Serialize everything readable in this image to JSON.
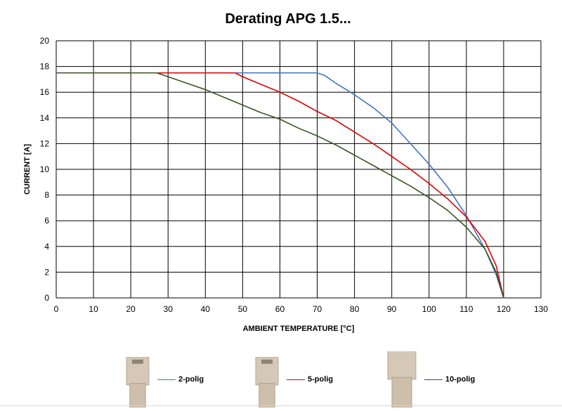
{
  "chart_data": {
    "type": "line",
    "title": "Derating APG 1.5...",
    "xlabel": "AMBIENT TEMPERATURE [°C]",
    "ylabel": "CURRENT [A]",
    "xlim": [
      0,
      130
    ],
    "ylim": [
      0,
      20
    ],
    "xticks": [
      0,
      10,
      20,
      30,
      40,
      50,
      60,
      70,
      80,
      90,
      100,
      110,
      120,
      130
    ],
    "yticks": [
      0,
      2,
      4,
      6,
      8,
      10,
      12,
      14,
      16,
      18,
      20
    ],
    "grid": true,
    "legend_placement": "bottom",
    "series": [
      {
        "name": "2-polig",
        "color": "#4472c4",
        "points": [
          [
            1,
            17.5
          ],
          [
            70,
            17.5
          ],
          [
            72,
            17.3
          ],
          [
            75,
            16.7
          ],
          [
            80,
            15.8
          ],
          [
            85,
            14.8
          ],
          [
            90,
            13.6
          ],
          [
            95,
            12.0
          ],
          [
            100,
            10.4
          ],
          [
            105,
            8.6
          ],
          [
            110,
            6.4
          ],
          [
            115,
            3.8
          ],
          [
            118,
            1.8
          ],
          [
            120,
            0
          ]
        ]
      },
      {
        "name": "5-polig",
        "color": "#e00000",
        "points": [
          [
            27,
            17.5
          ],
          [
            48,
            17.5
          ],
          [
            50,
            17.2
          ],
          [
            55,
            16.6
          ],
          [
            60,
            16.0
          ],
          [
            65,
            15.3
          ],
          [
            70,
            14.5
          ],
          [
            75,
            13.8
          ],
          [
            80,
            12.9
          ],
          [
            85,
            12.0
          ],
          [
            90,
            11.0
          ],
          [
            95,
            10.0
          ],
          [
            100,
            8.9
          ],
          [
            105,
            7.7
          ],
          [
            110,
            6.3
          ],
          [
            115,
            4.4
          ],
          [
            118,
            2.5
          ],
          [
            120,
            0
          ]
        ]
      },
      {
        "name": "10-polig",
        "color": "#375623",
        "points": [
          [
            0,
            17.5
          ],
          [
            27,
            17.5
          ],
          [
            30,
            17.2
          ],
          [
            35,
            16.7
          ],
          [
            40,
            16.2
          ],
          [
            45,
            15.6
          ],
          [
            50,
            15.0
          ],
          [
            55,
            14.4
          ],
          [
            60,
            13.9
          ],
          [
            65,
            13.2
          ],
          [
            70,
            12.6
          ],
          [
            75,
            11.9
          ],
          [
            80,
            11.1
          ],
          [
            85,
            10.3
          ],
          [
            90,
            9.5
          ],
          [
            95,
            8.7
          ],
          [
            100,
            7.8
          ],
          [
            105,
            6.8
          ],
          [
            110,
            5.5
          ],
          [
            115,
            3.8
          ],
          [
            118,
            2.0
          ],
          [
            120,
            0
          ]
        ]
      }
    ]
  }
}
